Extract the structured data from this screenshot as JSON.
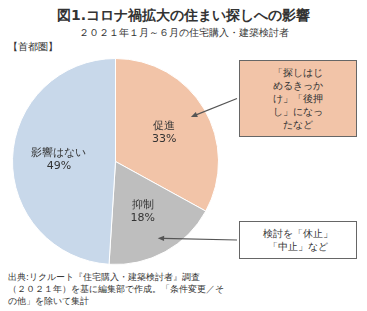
{
  "chart_data": {
    "type": "pie",
    "title": "図1.コロナ禍拡大の住まい探しへの影響",
    "subtitle": [
      "２０２１年１月～６月の住宅購入・建築検討者",
      "【首都圏】"
    ],
    "categories": [
      "促進",
      "抑制",
      "影響はない"
    ],
    "values": [
      33,
      18,
      49
    ],
    "value_labels": [
      "33%",
      "18%",
      "49%"
    ],
    "colors": [
      "#F2C4A8",
      "#BEBEBE",
      "#C8D8EA"
    ],
    "data_labels": true,
    "annotations": [
      "「探しはじ\nめるきっか\nけ」「後押\nし」になっ\nたなど",
      "検討を「休止」\n「中止」など"
    ],
    "source": "出典:リクルート『住宅購入・建築検討者』調査\n（２０２１年）を基に編集部で作成。「条件変更／そ\nの他」を除いて集計"
  }
}
